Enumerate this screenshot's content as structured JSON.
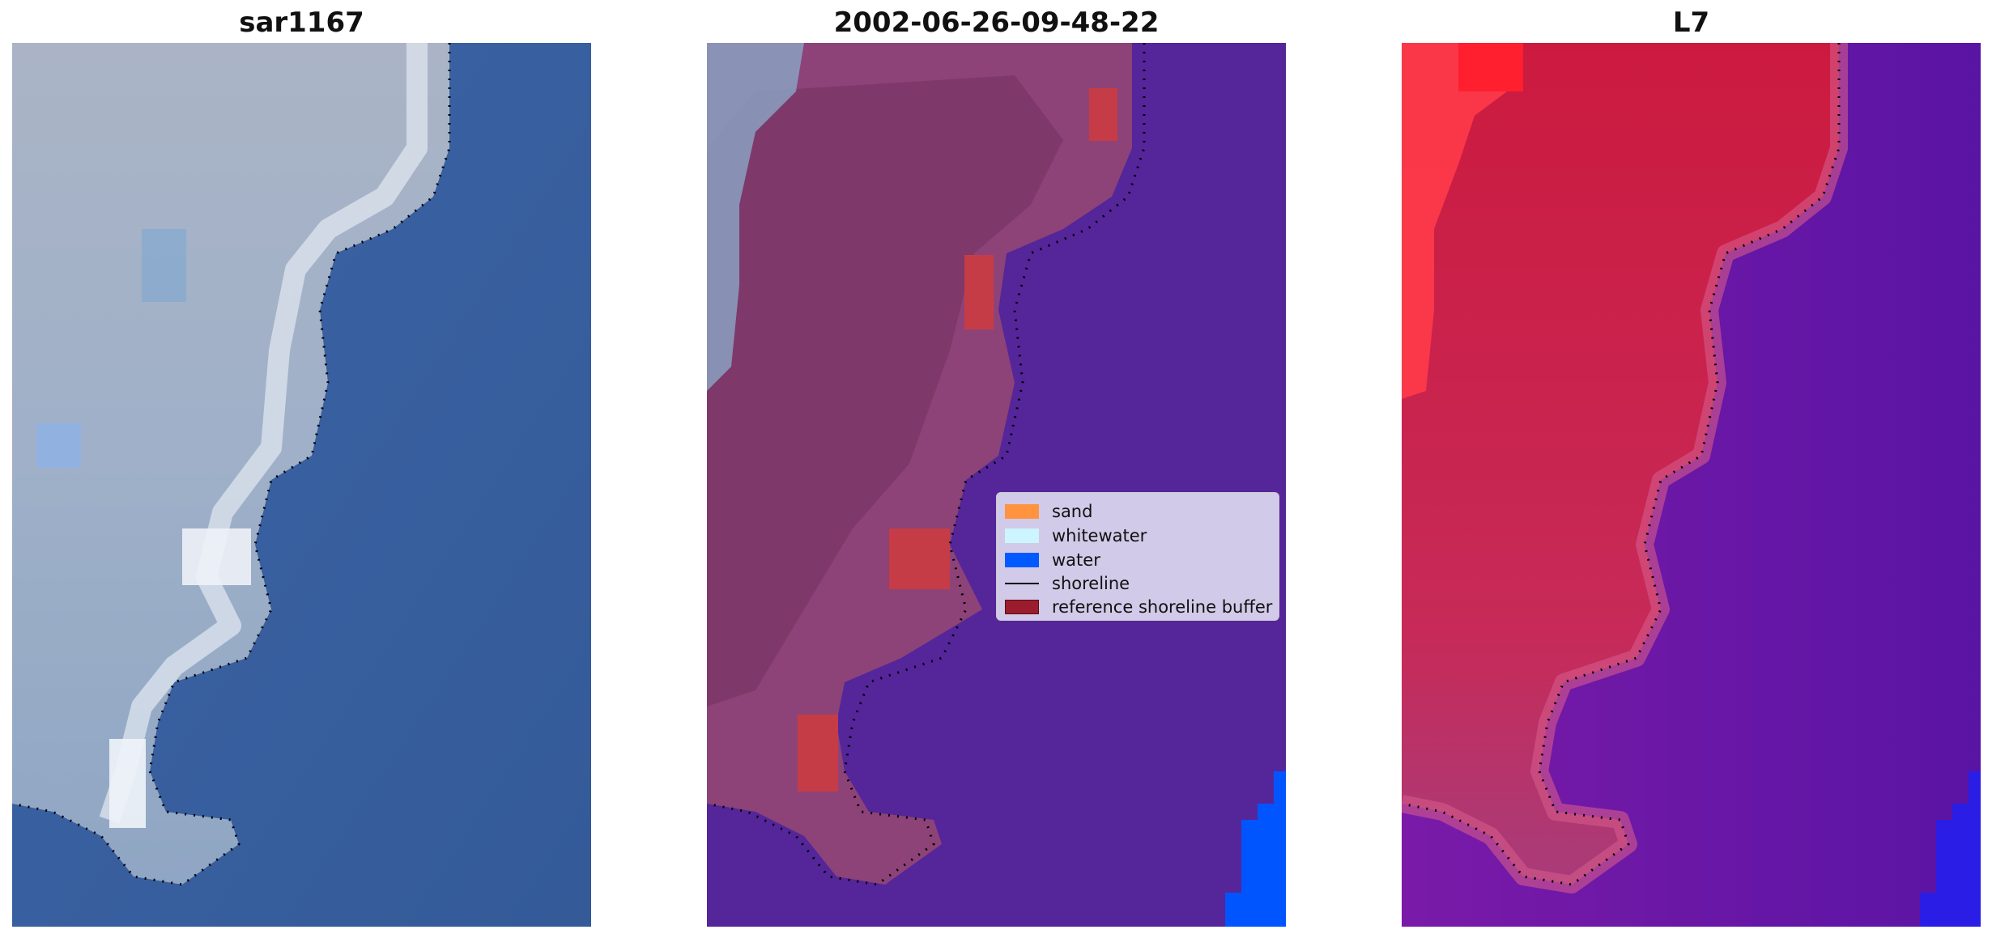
{
  "panels": [
    {
      "title": "sar1167"
    },
    {
      "title": "2002-06-26-09-48-22"
    },
    {
      "title": "L7"
    }
  ],
  "legend": {
    "items": [
      {
        "label": "sand",
        "color": "#ff9340"
      },
      {
        "label": "whitewater",
        "color": "#ccf5ff"
      },
      {
        "label": "water",
        "color": "#005aff"
      },
      {
        "label": "shoreline",
        "color": "#000000"
      },
      {
        "label": "reference shoreline buffer",
        "color": "#9b1c2c"
      }
    ]
  },
  "colors": {
    "panel1_land": "#a6b0c4",
    "panel1_sea": "#3a5f9e",
    "panel2_land": "#8a3f77",
    "panel2_sea": "#55259a",
    "panel3_land": "#c81e4a",
    "panel3_sea": "#6a18a4"
  }
}
